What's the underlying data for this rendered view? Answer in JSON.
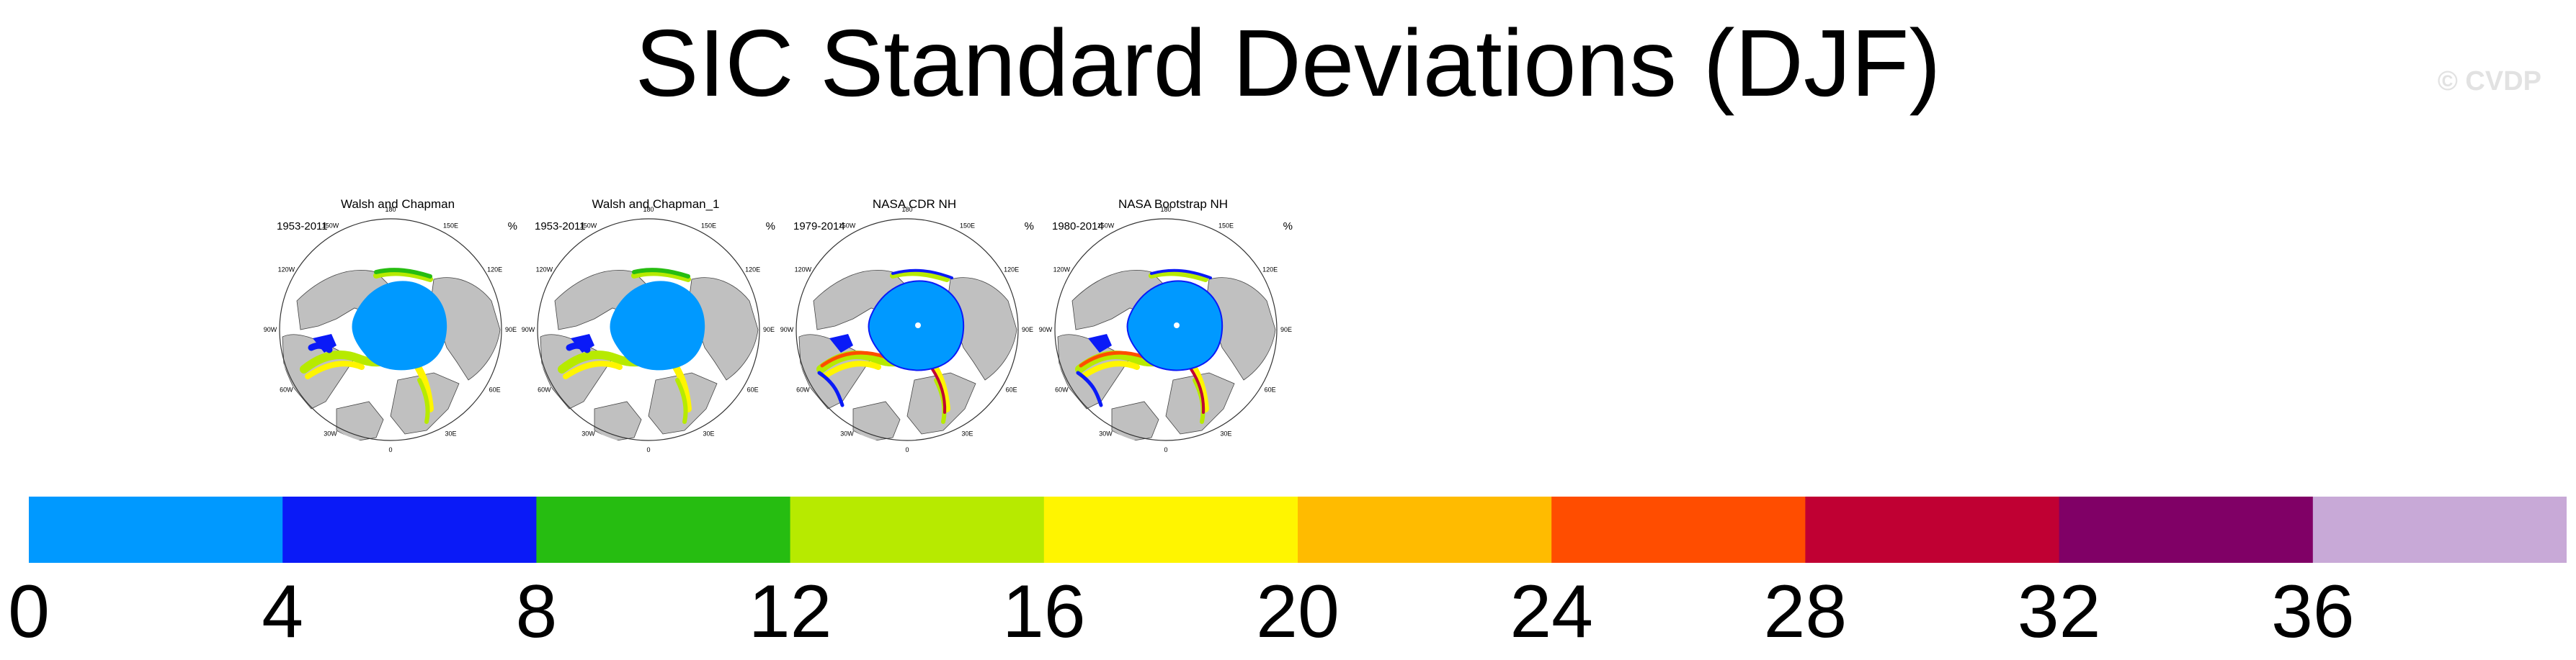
{
  "title": "SIC Standard Deviations (DJF)",
  "watermark": "© CVDP",
  "colors": {
    "land": "#c0c0c0",
    "ocean": "#ffffff",
    "coast": "#444444"
  },
  "panels": [
    {
      "title": "Walsh and Chapman",
      "period": "1953-2011",
      "units": "%",
      "style": "walsh"
    },
    {
      "title": "Walsh and Chapman_1",
      "period": "1953-2011",
      "units": "%",
      "style": "walsh"
    },
    {
      "title": "NASA CDR NH",
      "period": "1979-2014",
      "units": "%",
      "style": "nasa"
    },
    {
      "title": "NASA Bootstrap NH",
      "period": "1980-2014",
      "units": "%",
      "style": "nasa"
    }
  ],
  "longitude_labels": [
    "180",
    "150E",
    "120E",
    "90E",
    "60E",
    "30E",
    "0",
    "30W",
    "60W",
    "90W",
    "120W",
    "150W"
  ],
  "colorbar": {
    "bins": [
      {
        "color": "#0099ff"
      },
      {
        "color": "#0a1af7"
      },
      {
        "color": "#26bd11"
      },
      {
        "color": "#b7ea00"
      },
      {
        "color": "#fff500"
      },
      {
        "color": "#ffbb00"
      },
      {
        "color": "#ff4d00"
      },
      {
        "color": "#c00033"
      },
      {
        "color": "#800066"
      },
      {
        "color": "#c8a9d7"
      }
    ],
    "labels": [
      "0",
      "4",
      "8",
      "12",
      "16",
      "20",
      "24",
      "28",
      "32",
      "36"
    ]
  }
}
